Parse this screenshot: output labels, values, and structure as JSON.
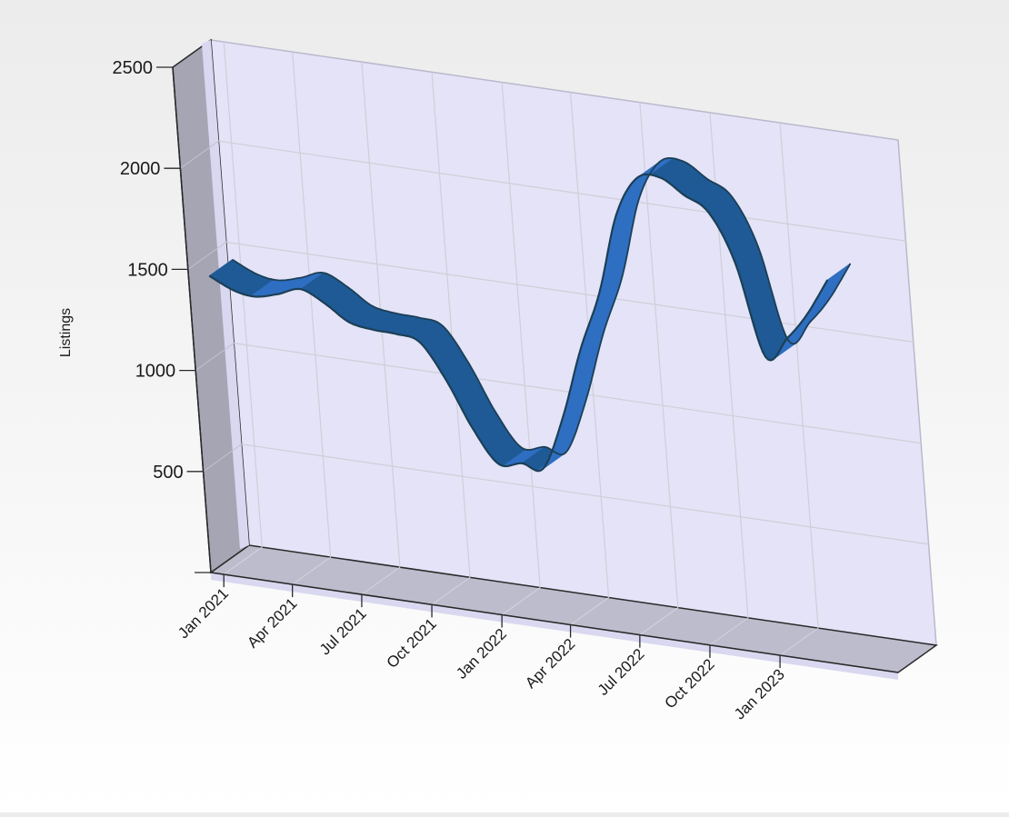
{
  "chart_data": {
    "type": "line",
    "render_style": "3d-ribbon",
    "title": "",
    "xlabel": "",
    "ylabel": "Listings",
    "ylim": [
      0,
      2500
    ],
    "grid": true,
    "y_ticks": [
      500,
      1000,
      1500,
      2000,
      2500
    ],
    "x_tick_labels": [
      "Jan 2021",
      "Apr 2021",
      "Jul 2021",
      "Oct 2021",
      "Jan 2022",
      "Apr 2022",
      "Jul 2022",
      "Oct 2022",
      "Jan 2023"
    ],
    "series": [
      {
        "color": "#2f6fc2",
        "points": [
          {
            "x": "2021-01-01",
            "y": 1450
          },
          {
            "x": "2021-02-01",
            "y": 1395
          },
          {
            "x": "2021-03-01",
            "y": 1380
          },
          {
            "x": "2021-04-01",
            "y": 1410
          },
          {
            "x": "2021-05-01",
            "y": 1450
          },
          {
            "x": "2021-06-01",
            "y": 1395
          },
          {
            "x": "2021-07-01",
            "y": 1320
          },
          {
            "x": "2021-08-01",
            "y": 1300
          },
          {
            "x": "2021-09-01",
            "y": 1295
          },
          {
            "x": "2021-10-01",
            "y": 1270
          },
          {
            "x": "2021-11-01",
            "y": 1100
          },
          {
            "x": "2021-12-01",
            "y": 880
          },
          {
            "x": "2022-01-01",
            "y": 720
          },
          {
            "x": "2022-02-01",
            "y": 740
          },
          {
            "x": "2022-03-01",
            "y": 730
          },
          {
            "x": "2022-04-01",
            "y": 1000
          },
          {
            "x": "2022-05-01",
            "y": 1350
          },
          {
            "x": "2022-06-01",
            "y": 1650
          },
          {
            "x": "2022-07-01",
            "y": 2050
          },
          {
            "x": "2022-08-01",
            "y": 2250
          },
          {
            "x": "2022-09-01",
            "y": 2270
          },
          {
            "x": "2022-10-01",
            "y": 2200
          },
          {
            "x": "2022-11-01",
            "y": 2130
          },
          {
            "x": "2022-12-01",
            "y": 1900
          },
          {
            "x": "2023-01-01",
            "y": 1450
          },
          {
            "x": "2023-02-01",
            "y": 1560
          },
          {
            "x": "2023-03-01",
            "y": 1690
          },
          {
            "x": "2023-04-01",
            "y": 1880
          }
        ]
      }
    ]
  },
  "colors": {
    "plot_back_wall": "#e4e3f8",
    "side_wall": "#a6a5b4",
    "floor": "#bdbccc",
    "grid": "#cfcfd6",
    "ribbon_top": "#2f6fc2",
    "ribbon_side": "#1f5a96",
    "ribbon_edge": "#1c3f55"
  }
}
